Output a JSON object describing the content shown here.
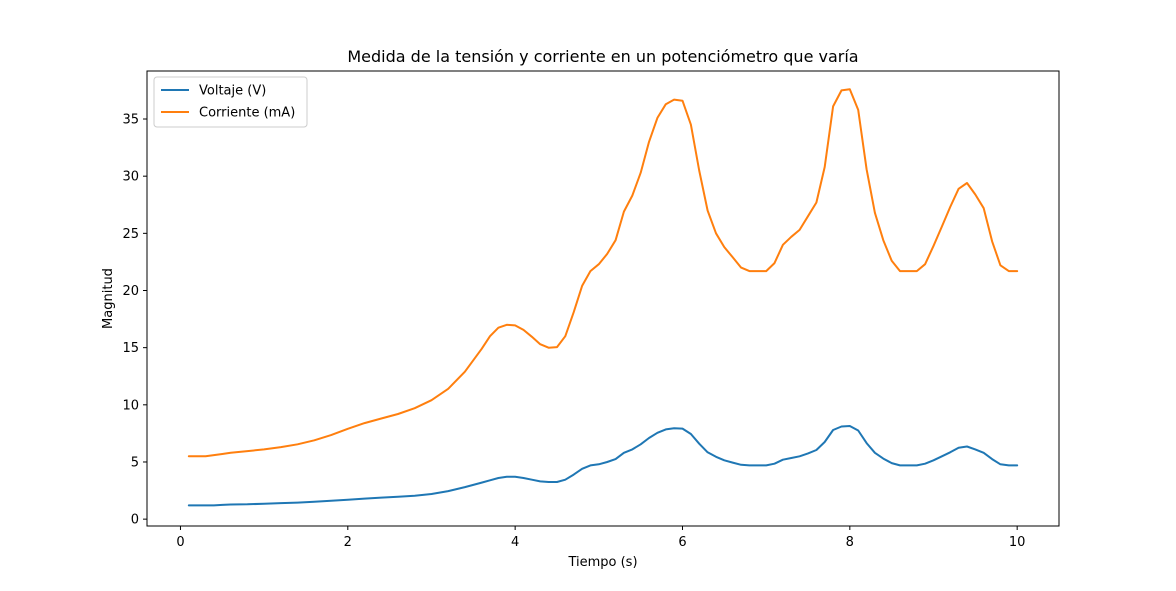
{
  "chart_data": {
    "type": "line",
    "title": "Medida de la tensión y corriente en un potenciómetro que varía",
    "xlabel": "Tiempo (s)",
    "ylabel": "Magnitud",
    "xlim": [
      -0.4,
      10.5
    ],
    "ylim": [
      -0.6,
      39.2
    ],
    "xticks": [
      0,
      2,
      4,
      6,
      8,
      10
    ],
    "yticks": [
      0,
      5,
      10,
      15,
      20,
      25,
      30,
      35
    ],
    "xtick_labels": [
      "0",
      "2",
      "4",
      "6",
      "8",
      "10"
    ],
    "ytick_labels": [
      "0",
      "5",
      "10",
      "15",
      "20",
      "25",
      "30",
      "35"
    ],
    "grid": false,
    "legend_position": "top-left",
    "x": [
      0.1,
      0.3,
      0.4,
      0.5,
      0.6,
      0.8,
      1.0,
      1.2,
      1.4,
      1.6,
      1.8,
      2.0,
      2.2,
      2.4,
      2.6,
      2.8,
      3.0,
      3.2,
      3.4,
      3.6,
      3.7,
      3.8,
      3.9,
      4.0,
      4.1,
      4.2,
      4.3,
      4.4,
      4.5,
      4.6,
      4.7,
      4.8,
      4.9,
      5.0,
      5.1,
      5.2,
      5.3,
      5.4,
      5.5,
      5.6,
      5.7,
      5.8,
      5.9,
      6.0,
      6.1,
      6.2,
      6.3,
      6.4,
      6.5,
      6.6,
      6.7,
      6.8,
      6.9,
      7.0,
      7.1,
      7.2,
      7.3,
      7.4,
      7.5,
      7.6,
      7.7,
      7.8,
      7.9,
      8.0,
      8.1,
      8.2,
      8.3,
      8.4,
      8.5,
      8.6,
      8.7,
      8.8,
      8.9,
      9.0,
      9.1,
      9.2,
      9.3,
      9.4,
      9.5,
      9.6,
      9.7,
      9.8,
      9.9,
      10.0
    ],
    "series": [
      {
        "name": "Voltaje (V)",
        "color": "#1f77b4",
        "values": [
          1.2,
          1.2,
          1.2,
          1.25,
          1.28,
          1.3,
          1.35,
          1.4,
          1.45,
          1.52,
          1.6,
          1.7,
          1.8,
          1.88,
          1.95,
          2.05,
          2.2,
          2.45,
          2.8,
          3.2,
          3.4,
          3.6,
          3.7,
          3.7,
          3.6,
          3.45,
          3.3,
          3.25,
          3.25,
          3.45,
          3.9,
          4.4,
          4.7,
          4.8,
          5.0,
          5.25,
          5.8,
          6.1,
          6.55,
          7.1,
          7.55,
          7.85,
          7.95,
          7.92,
          7.45,
          6.6,
          5.85,
          5.45,
          5.15,
          4.95,
          4.75,
          4.7,
          4.7,
          4.7,
          4.85,
          5.2,
          5.35,
          5.5,
          5.75,
          6.05,
          6.75,
          7.8,
          8.1,
          8.15,
          7.75,
          6.65,
          5.8,
          5.3,
          4.9,
          4.7,
          4.7,
          4.7,
          4.85,
          5.15,
          5.5,
          5.85,
          6.25,
          6.35,
          6.1,
          5.8,
          5.25,
          4.8,
          4.7,
          4.7
        ]
      },
      {
        "name": "Corriente (mA)",
        "color": "#ff7f0e",
        "values": [
          5.5,
          5.5,
          5.6,
          5.7,
          5.8,
          5.95,
          6.1,
          6.3,
          6.55,
          6.9,
          7.35,
          7.9,
          8.4,
          8.8,
          9.2,
          9.7,
          10.4,
          11.4,
          12.9,
          14.9,
          16.0,
          16.75,
          17.0,
          16.95,
          16.55,
          15.95,
          15.3,
          15.0,
          15.05,
          16.0,
          18.1,
          20.4,
          21.7,
          22.3,
          23.2,
          24.4,
          26.9,
          28.3,
          30.3,
          33.0,
          35.1,
          36.3,
          36.7,
          36.6,
          34.5,
          30.5,
          27.0,
          25.0,
          23.8,
          22.9,
          22.0,
          21.7,
          21.7,
          21.7,
          22.4,
          24.0,
          24.7,
          25.3,
          26.5,
          27.7,
          30.8,
          36.1,
          37.5,
          37.6,
          35.8,
          30.6,
          26.8,
          24.4,
          22.6,
          21.7,
          21.7,
          21.7,
          22.3,
          23.9,
          25.6,
          27.3,
          28.9,
          29.4,
          28.4,
          27.2,
          24.3,
          22.2,
          21.7,
          21.7
        ]
      }
    ]
  }
}
